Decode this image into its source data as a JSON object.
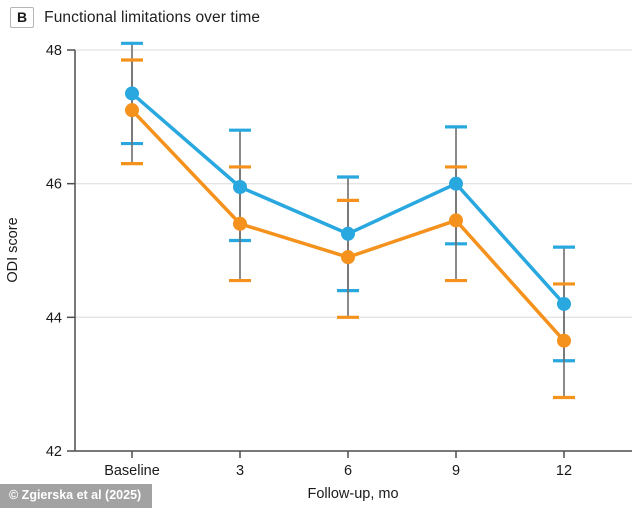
{
  "panel": {
    "label": "B",
    "title": "Functional limitations over time"
  },
  "watermark": "© Zgierska et al (2025)",
  "chart_data": {
    "type": "line",
    "title": "Functional limitations over time",
    "xlabel": "Follow-up, mo",
    "ylabel": "ODI score",
    "categories": [
      "Baseline",
      "3",
      "6",
      "9",
      "12"
    ],
    "ylim": [
      42,
      48
    ],
    "yticks": [
      42,
      44,
      46,
      48
    ],
    "grid": "horizontal-light",
    "legend_position": "none",
    "error_bars": true,
    "series": [
      {
        "name": "blue-series",
        "color": "#29a8e0",
        "values": [
          47.35,
          45.95,
          45.25,
          46.0,
          44.2
        ],
        "ci_low": [
          46.6,
          45.15,
          44.4,
          45.1,
          43.35
        ],
        "ci_high": [
          48.1,
          46.8,
          46.1,
          46.85,
          45.05
        ]
      },
      {
        "name": "orange-series",
        "color": "#f5921e",
        "values": [
          47.1,
          45.4,
          44.9,
          45.45,
          43.65
        ],
        "ci_low": [
          46.3,
          44.55,
          44.0,
          44.55,
          42.8
        ],
        "ci_high": [
          47.85,
          46.25,
          45.75,
          46.25,
          44.5
        ]
      }
    ],
    "style": {
      "axis_color": "#4d4d4d",
      "grid_color": "#e4e4e4",
      "errorbar_line_color": "#6e6e6e",
      "tick_label_color": "#1a1a1a"
    }
  }
}
